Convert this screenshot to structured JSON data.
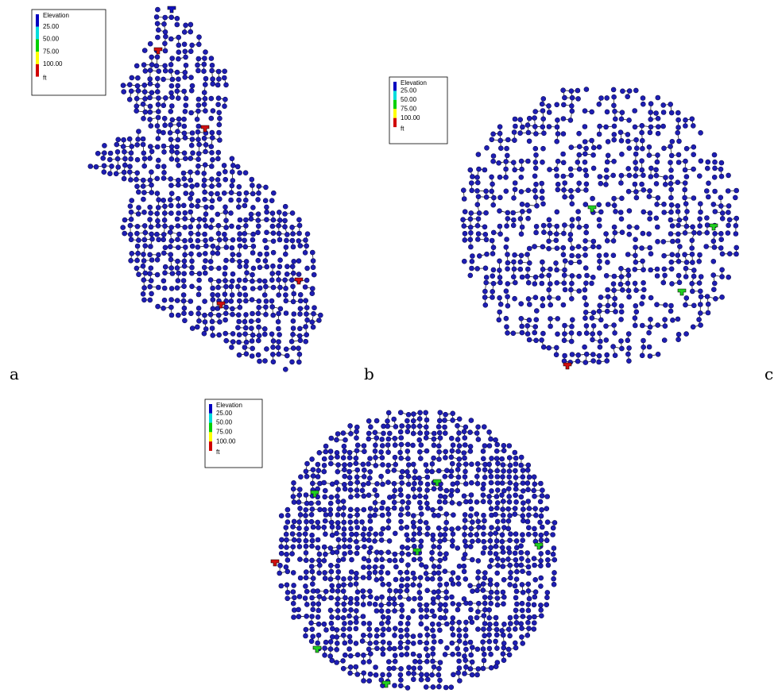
{
  "panels": [
    {
      "label": "a",
      "legend": {
        "title": "Elevation",
        "ticks": [
          "25.00",
          "50.00",
          "75.00",
          "100.00"
        ],
        "unit": "ft"
      }
    },
    {
      "label": "b",
      "legend": {
        "title": "Elevation",
        "ticks": [
          "25.00",
          "50.00",
          "75.00",
          "100.00"
        ],
        "unit": "ft"
      }
    },
    {
      "label": "c",
      "legend": {
        "title": "Elevation",
        "ticks": [
          "25.00",
          "50.00",
          "75.00",
          "100.00"
        ],
        "unit": "ft"
      }
    }
  ]
}
